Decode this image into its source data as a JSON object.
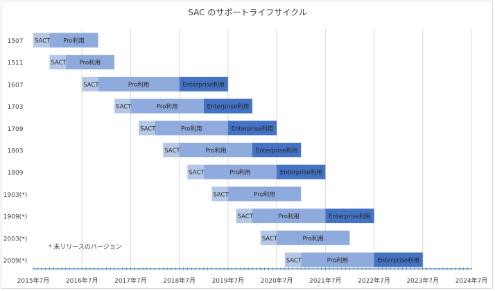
{
  "chart_data": {
    "type": "bar",
    "orientation": "horizontal-stacked-gantt",
    "title": "SAC のサポートライフサイクル",
    "note": "* 未リリースのバージョン",
    "x_tick_labels": [
      "2015年7月",
      "2016年7月",
      "2017年7月",
      "2018年7月",
      "2019年7月",
      "2020年7月",
      "2021年7月",
      "2022年7月",
      "2023年7月",
      "2024年7月"
    ],
    "xlim": [
      "2015-07",
      "2024-07"
    ],
    "grid": true,
    "categories": [
      "1507",
      "1511",
      "1607",
      "1703",
      "1709",
      "1803",
      "1809",
      "1903(*)",
      "1909(*)",
      "2003(*)",
      "2009(*)"
    ],
    "series_colors": {
      "SACT": "#b4c7e7",
      "Pro利用": "#8faadc",
      "Enterprise利用": "#4472c4"
    },
    "rows": [
      {
        "label": "1507",
        "phases": [
          {
            "name": "SACT",
            "start": "2015-07",
            "end": "2015-11"
          },
          {
            "name": "Pro利用",
            "start": "2015-11",
            "end": "2016-11"
          }
        ]
      },
      {
        "label": "1511",
        "phases": [
          {
            "name": "SACT",
            "start": "2015-11",
            "end": "2016-03"
          },
          {
            "name": "Pro利用",
            "start": "2016-03",
            "end": "2017-03"
          }
        ]
      },
      {
        "label": "1607",
        "phases": [
          {
            "name": "SACT",
            "start": "2016-07",
            "end": "2016-11"
          },
          {
            "name": "Pro利用",
            "start": "2016-11",
            "end": "2018-07"
          },
          {
            "name": "Enterprise利用",
            "start": "2018-07",
            "end": "2019-07"
          }
        ]
      },
      {
        "label": "1703",
        "phases": [
          {
            "name": "SACT",
            "start": "2017-03",
            "end": "2017-07"
          },
          {
            "name": "Pro利用",
            "start": "2017-07",
            "end": "2019-01"
          },
          {
            "name": "Enterprise利用",
            "start": "2019-01",
            "end": "2020-01"
          }
        ]
      },
      {
        "label": "1709",
        "phases": [
          {
            "name": "SACT",
            "start": "2017-09",
            "end": "2018-01"
          },
          {
            "name": "Pro利用",
            "start": "2018-01",
            "end": "2019-07"
          },
          {
            "name": "Enterprise利用",
            "start": "2019-07",
            "end": "2020-07"
          }
        ]
      },
      {
        "label": "1803",
        "phases": [
          {
            "name": "SACT",
            "start": "2018-03",
            "end": "2018-07"
          },
          {
            "name": "Pro利用",
            "start": "2018-07",
            "end": "2020-01"
          },
          {
            "name": "Enterprise利用",
            "start": "2020-01",
            "end": "2021-01"
          }
        ]
      },
      {
        "label": "1809",
        "phases": [
          {
            "name": "SACT",
            "start": "2018-09",
            "end": "2019-01"
          },
          {
            "name": "Pro利用",
            "start": "2019-01",
            "end": "2020-07"
          },
          {
            "name": "Enterprise利用",
            "start": "2020-07",
            "end": "2021-07"
          }
        ]
      },
      {
        "label": "1903(*)",
        "phases": [
          {
            "name": "SACT",
            "start": "2019-03",
            "end": "2019-07"
          },
          {
            "name": "Pro利用",
            "start": "2019-07",
            "end": "2021-01"
          }
        ]
      },
      {
        "label": "1909(*)",
        "phases": [
          {
            "name": "SACT",
            "start": "2019-09",
            "end": "2020-01"
          },
          {
            "name": "Pro利用",
            "start": "2020-01",
            "end": "2021-07"
          },
          {
            "name": "Enterprise利用",
            "start": "2021-07",
            "end": "2022-07"
          }
        ]
      },
      {
        "label": "2003(*)",
        "phases": [
          {
            "name": "SACT",
            "start": "2020-03",
            "end": "2020-07"
          },
          {
            "name": "Pro利用",
            "start": "2020-07",
            "end": "2022-01"
          }
        ]
      },
      {
        "label": "2009(*)",
        "phases": [
          {
            "name": "SACT",
            "start": "2020-09",
            "end": "2021-01"
          },
          {
            "name": "Pro利用",
            "start": "2021-01",
            "end": "2022-07"
          },
          {
            "name": "Enterprise利用",
            "start": "2022-07",
            "end": "2023-07"
          }
        ]
      }
    ]
  }
}
